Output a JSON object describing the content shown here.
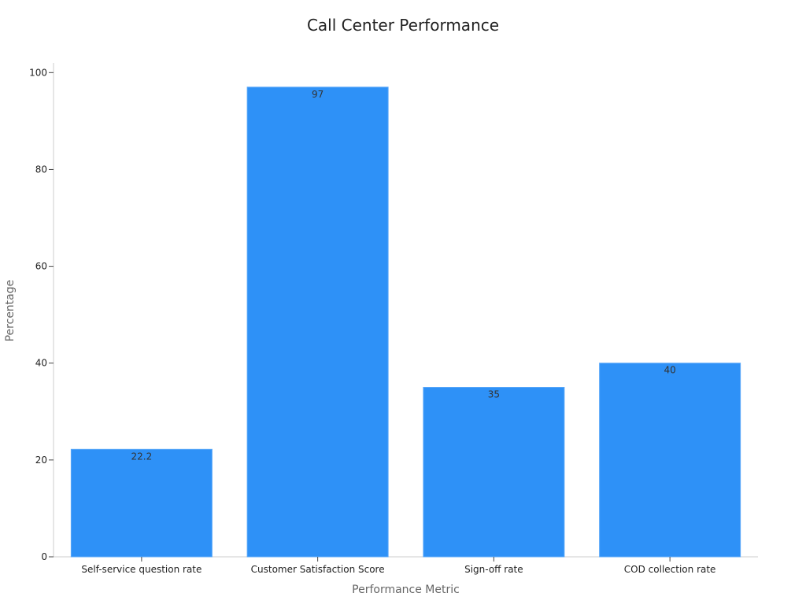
{
  "chart_data": {
    "type": "bar",
    "title": "Call Center Performance",
    "xlabel": "Performance Metric",
    "ylabel": "Percentage",
    "categories": [
      "Self-service question rate",
      "Customer Satisfaction Score",
      "Sign-off rate",
      "COD collection rate"
    ],
    "values": [
      22.2,
      97,
      35,
      40
    ],
    "data_labels": [
      "22.2",
      "97",
      "35",
      "40"
    ],
    "ylim": [
      0,
      102
    ],
    "yticks": [
      0,
      20,
      40,
      60,
      80,
      100
    ],
    "ytick_labels": [
      "0",
      "20",
      "40",
      "60",
      "80",
      "100"
    ],
    "grid": false,
    "legend": "none",
    "colors": {
      "bar": "#2e91f7",
      "axis": "#cccccc",
      "tick_text": "#222222",
      "data_label": "#333333"
    }
  }
}
